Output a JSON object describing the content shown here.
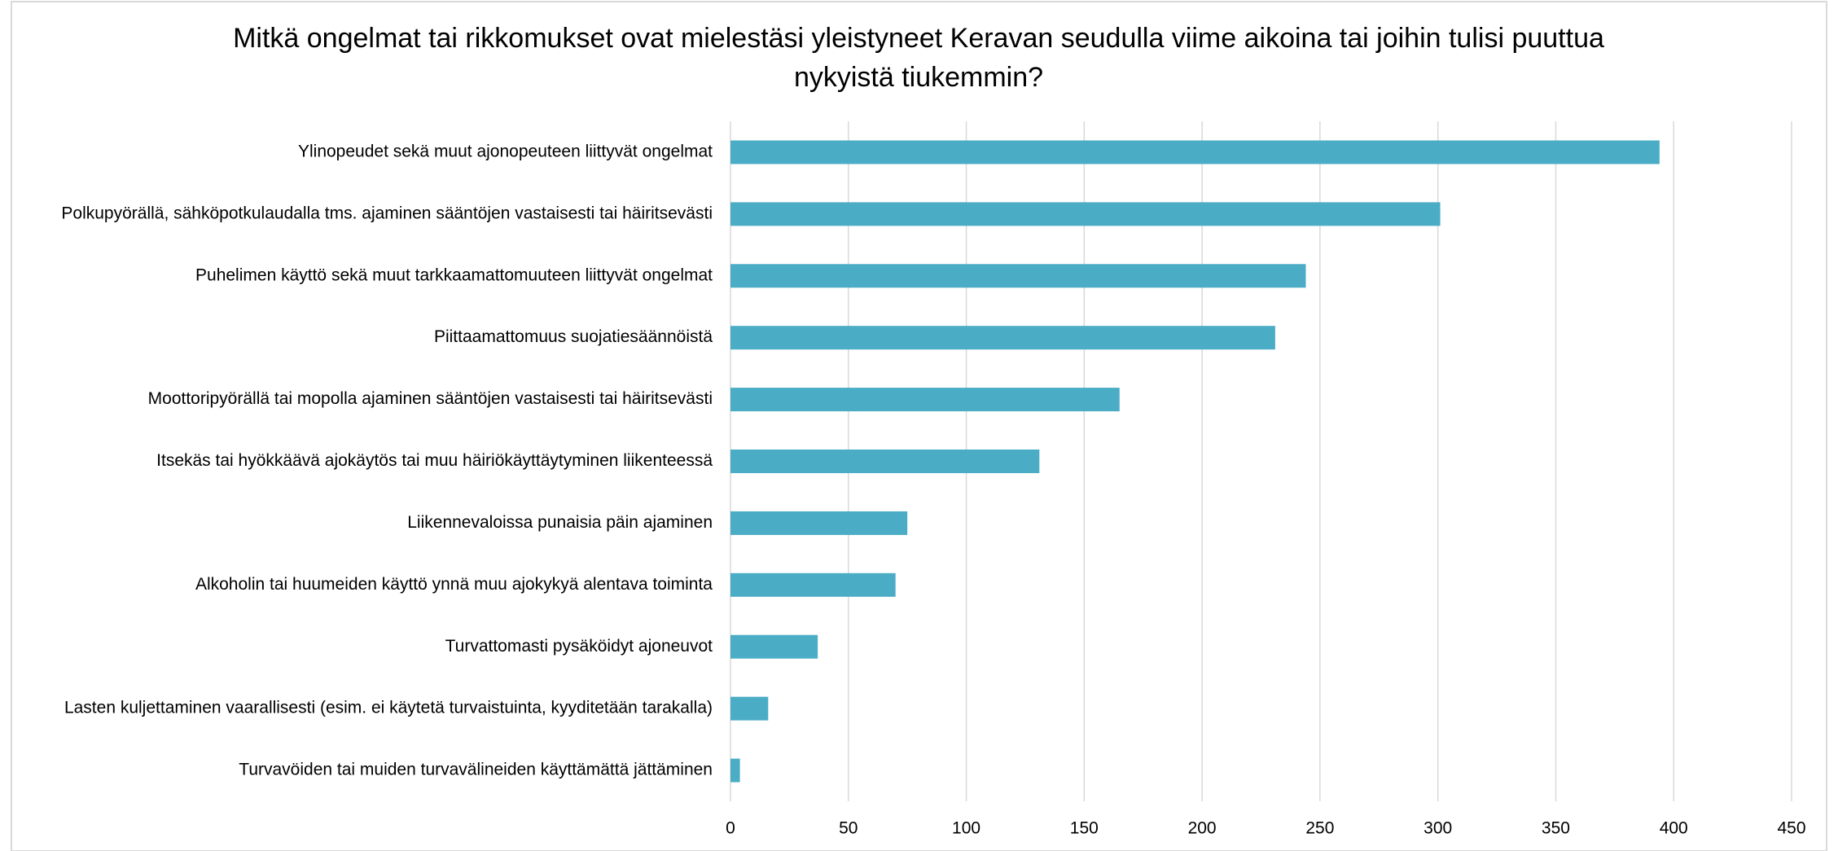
{
  "chart_data": {
    "type": "bar",
    "orientation": "horizontal",
    "title": [
      "Mitkä ongelmat tai rikkomukset ovat mielestäsi yleistyneet Keravan seudulla viime aikoina tai joihin tulisi puuttua",
      "nykyistä tiukemmin?"
    ],
    "categories": [
      "Ylinopeudet sekä muut ajonopeuteen liittyvät ongelmat",
      "Polkupyörällä, sähköpotkulaudalla tms. ajaminen sääntöjen vastaisesti tai häiritsevästi",
      "Puhelimen käyttö sekä muut tarkkaamattomuuteen liittyvät ongelmat",
      "Piittaamattomuus suojatiesäännöistä",
      "Moottoripyörällä tai mopolla ajaminen sääntöjen vastaisesti tai häiritsevästi",
      "Itsekäs tai hyökkäävä ajokäytös tai muu häiriökäyttäytyminen liikenteessä",
      "Liikennevaloissa punaisia päin ajaminen",
      "Alkoholin tai huumeiden käyttö ynnä muu ajokykyä alentava toiminta",
      "Turvattomasti pysäköidyt ajoneuvot",
      "Lasten kuljettaminen vaarallisesti (esim. ei käytetä turvaistuinta, kyyditetään tarakalla)",
      "Turvavöiden tai muiden turvavälineiden käyttämättä jättäminen"
    ],
    "values": [
      394,
      301,
      244,
      231,
      165,
      131,
      75,
      70,
      37,
      16,
      4
    ],
    "color": "#4bacc6",
    "xlim": [
      0,
      450
    ],
    "xticks": [
      0,
      50,
      100,
      150,
      200,
      250,
      300,
      350,
      400,
      450
    ],
    "grid": true
  }
}
